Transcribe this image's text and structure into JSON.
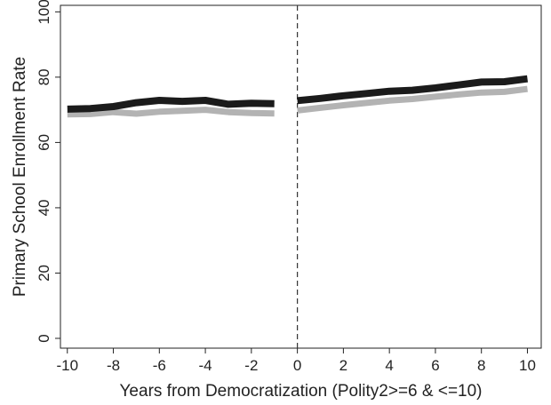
{
  "chart_data": {
    "type": "line",
    "xlabel": "Years from Democratization (Polity2>=6 & <=10)",
    "ylabel": "Primary School Enrollment Rate",
    "xlim": [
      -10.3,
      10.6
    ],
    "ylim": [
      -3,
      102
    ],
    "x_ticks": [
      -10,
      -8,
      -6,
      -4,
      -2,
      0,
      2,
      4,
      6,
      8,
      10
    ],
    "y_ticks": [
      0,
      20,
      40,
      60,
      80,
      100
    ],
    "x_tick_labels": [
      "-10",
      "-8",
      "-6",
      "-4",
      "-2",
      "0",
      "2",
      "4",
      "6",
      "8",
      "10"
    ],
    "y_tick_labels": [
      "0",
      "20",
      "40",
      "60",
      "80",
      "100"
    ],
    "grid": false,
    "legend": "none",
    "reference_line": {
      "x": 0,
      "style": "dashed",
      "color": "#333333"
    },
    "series": [
      {
        "color": "#1b1b1b",
        "segments": [
          {
            "x": [
              -10,
              -9,
              -8,
              -7,
              -6,
              -5,
              -4,
              -3,
              -2,
              -1
            ],
            "y": [
              70.2,
              70.4,
              71.0,
              72.2,
              72.9,
              72.6,
              72.9,
              71.7,
              72.0,
              71.9
            ]
          },
          {
            "x": [
              0,
              1,
              2,
              3,
              4,
              5,
              6,
              7,
              8,
              9,
              10
            ],
            "y": [
              72.8,
              73.5,
              74.3,
              75.0,
              75.7,
              76.0,
              76.7,
              77.6,
              78.5,
              78.6,
              79.5
            ]
          }
        ]
      },
      {
        "color": "#b3b3b3",
        "segments": [
          {
            "x": [
              -10,
              -9,
              -8,
              -7,
              -6,
              -5,
              -4,
              -3,
              -2,
              -1
            ],
            "y": [
              68.6,
              68.7,
              69.3,
              68.8,
              69.4,
              69.7,
              70.0,
              69.3,
              69.0,
              68.9
            ]
          },
          {
            "x": [
              0,
              1,
              2,
              3,
              4,
              5,
              6,
              7,
              8,
              9,
              10
            ],
            "y": [
              69.8,
              70.6,
              71.4,
              72.1,
              72.8,
              73.3,
              74.0,
              74.7,
              75.3,
              75.5,
              76.4
            ]
          }
        ]
      }
    ]
  }
}
